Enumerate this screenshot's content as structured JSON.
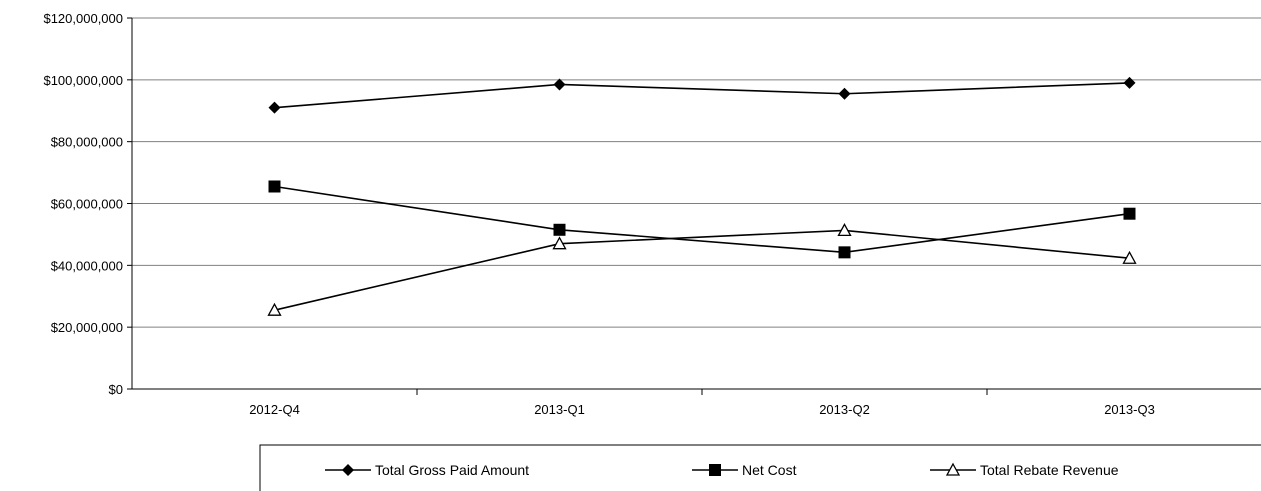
{
  "chart_data": {
    "type": "line",
    "categories": [
      "2012-Q4",
      "2013-Q1",
      "2013-Q2",
      "2013-Q3"
    ],
    "ylim": [
      0,
      120000000
    ],
    "yticks": [
      0,
      20000000,
      40000000,
      60000000,
      80000000,
      100000000,
      120000000
    ],
    "ytick_labels": [
      "$0",
      "$20,000,000",
      "$40,000,000",
      "$60,000,000",
      "$80,000,000",
      "$100,000,000",
      "$120,000,000"
    ],
    "grid": true,
    "legend_position": "bottom",
    "series": [
      {
        "name": "Total Gross Paid Amount",
        "marker": "diamond",
        "values": [
          91000000,
          98500000,
          95500000,
          99000000
        ]
      },
      {
        "name": "Net Cost",
        "marker": "square",
        "values": [
          65500000,
          51500000,
          44200000,
          56700000
        ]
      },
      {
        "name": "Total Rebate Revenue",
        "marker": "triangle-open",
        "values": [
          25500000,
          47000000,
          51300000,
          42300000
        ]
      }
    ],
    "colors": {
      "line": "#000000",
      "grid": "#808080",
      "background": "#ffffff"
    }
  }
}
